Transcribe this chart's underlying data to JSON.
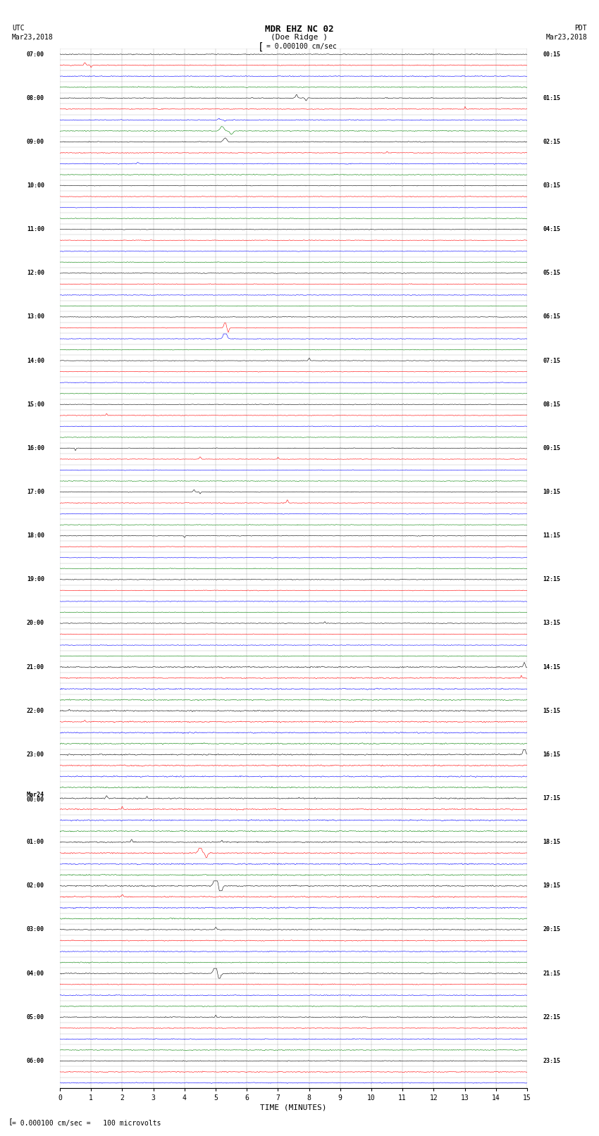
{
  "title_line1": "MDR EHZ NC 02",
  "title_line2": "(Doe Ridge )",
  "scale_label": "= 0.000100 cm/sec",
  "bottom_label": "= 0.000100 cm/sec =   100 microvolts",
  "utc_label": "UTC\nMar23,2018",
  "pdt_label": "PDT\nMar23,2018",
  "xlabel": "TIME (MINUTES)",
  "left_times": [
    "07:00",
    "",
    "",
    "",
    "08:00",
    "",
    "",
    "",
    "09:00",
    "",
    "",
    "",
    "10:00",
    "",
    "",
    "",
    "11:00",
    "",
    "",
    "",
    "12:00",
    "",
    "",
    "",
    "13:00",
    "",
    "",
    "",
    "14:00",
    "",
    "",
    "",
    "15:00",
    "",
    "",
    "",
    "16:00",
    "",
    "",
    "",
    "17:00",
    "",
    "",
    "",
    "18:00",
    "",
    "",
    "",
    "19:00",
    "",
    "",
    "",
    "20:00",
    "",
    "",
    "",
    "21:00",
    "",
    "",
    "",
    "22:00",
    "",
    "",
    "",
    "23:00",
    "",
    "",
    "",
    "Mar24\n00:00",
    "",
    "",
    "",
    "01:00",
    "",
    "",
    "",
    "02:00",
    "",
    "",
    "",
    "03:00",
    "",
    "",
    "",
    "04:00",
    "",
    "",
    "",
    "05:00",
    "",
    "",
    "",
    "06:00",
    "",
    ""
  ],
  "right_times": [
    "00:15",
    "",
    "",
    "",
    "01:15",
    "",
    "",
    "",
    "02:15",
    "",
    "",
    "",
    "03:15",
    "",
    "",
    "",
    "04:15",
    "",
    "",
    "",
    "05:15",
    "",
    "",
    "",
    "06:15",
    "",
    "",
    "",
    "07:15",
    "",
    "",
    "",
    "08:15",
    "",
    "",
    "",
    "09:15",
    "",
    "",
    "",
    "10:15",
    "",
    "",
    "",
    "11:15",
    "",
    "",
    "",
    "12:15",
    "",
    "",
    "",
    "13:15",
    "",
    "",
    "",
    "14:15",
    "",
    "",
    "",
    "15:15",
    "",
    "",
    "",
    "16:15",
    "",
    "",
    "",
    "17:15",
    "",
    "",
    "",
    "18:15",
    "",
    "",
    "",
    "19:15",
    "",
    "",
    "",
    "20:15",
    "",
    "",
    "",
    "21:15",
    "",
    "",
    "",
    "22:15",
    "",
    "",
    "",
    "23:15",
    "",
    ""
  ],
  "n_rows": 95,
  "colors_cycle": [
    "black",
    "red",
    "blue",
    "green"
  ],
  "background_color": "white",
  "grid_color": "#999999"
}
